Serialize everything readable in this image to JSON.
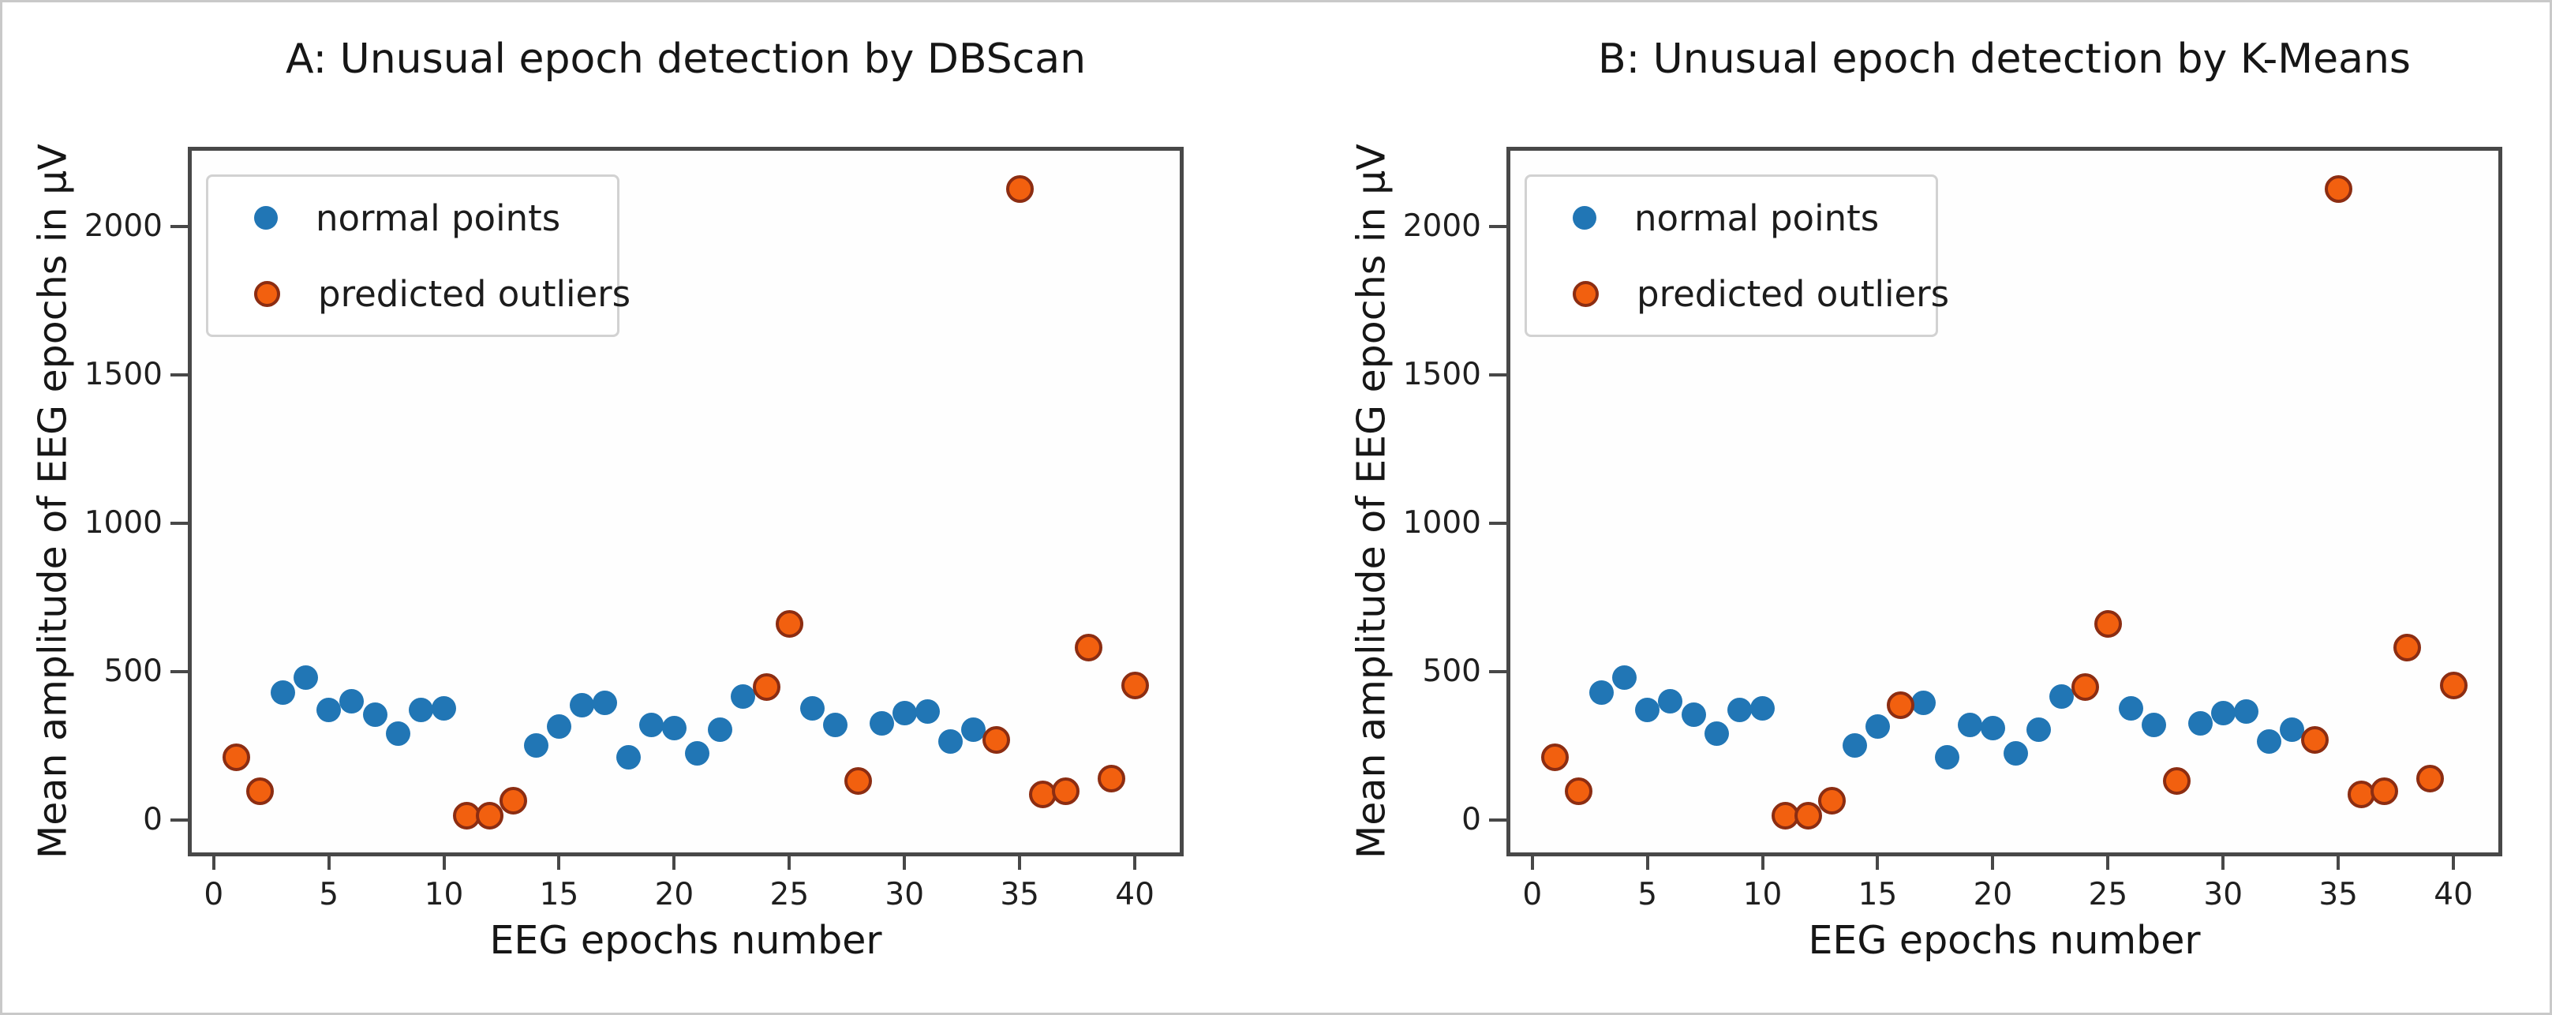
{
  "figure": {
    "background_color": "#ffffff",
    "accent_colors": {
      "normal_point": "#2176b5",
      "outlier_fill": "#f2600f",
      "outlier_edge": "#8c2d12",
      "axis_spine": "#484848"
    }
  },
  "legend": {
    "items": [
      {
        "label": "normal points",
        "type": "normal",
        "color": "#2176b5"
      },
      {
        "label": "predicted outliers",
        "type": "outlier",
        "color": "#f2600f"
      }
    ],
    "position": "upper left"
  },
  "chart_data": [
    {
      "type": "scatter",
      "panel": "A",
      "title": "A: Unusual epoch detection by DBScan",
      "xlabel": "EEG epochs number",
      "ylabel": "Mean amplitude of EEG epochs in µV",
      "xlim": [
        -0.95,
        41.95
      ],
      "ylim": [
        -110,
        2255
      ],
      "xticks": [
        0,
        5,
        10,
        15,
        20,
        25,
        30,
        35,
        40
      ],
      "yticks": [
        0,
        500,
        1000,
        1500,
        2000
      ],
      "grid": false,
      "legend_position": "upper left",
      "series": [
        {
          "name": "normal points",
          "marker": "circle",
          "color": "#2176b5",
          "points": [
            [
              3,
              430
            ],
            [
              4,
              480
            ],
            [
              5,
              370
            ],
            [
              6,
              400
            ],
            [
              7,
              355
            ],
            [
              8,
              290
            ],
            [
              9,
              370
            ],
            [
              10,
              375
            ],
            [
              14,
              250
            ],
            [
              15,
              315
            ],
            [
              16,
              385
            ],
            [
              17,
              395
            ],
            [
              18,
              210
            ],
            [
              19,
              320
            ],
            [
              20,
              308
            ],
            [
              21,
              225
            ],
            [
              22,
              305
            ],
            [
              23,
              415
            ],
            [
              26,
              375
            ],
            [
              27,
              320
            ],
            [
              29,
              325
            ],
            [
              30,
              360
            ],
            [
              31,
              365
            ],
            [
              32,
              265
            ],
            [
              33,
              305
            ]
          ]
        },
        {
          "name": "predicted outliers",
          "marker": "circle-edged",
          "color": "#f2600f",
          "edge_color": "#8c2d12",
          "points": [
            [
              1,
              210
            ],
            [
              2,
              97
            ],
            [
              11,
              15
            ],
            [
              12,
              15
            ],
            [
              13,
              65
            ],
            [
              24,
              448
            ],
            [
              25,
              660
            ],
            [
              28,
              130
            ],
            [
              34,
              270
            ],
            [
              35,
              2125
            ],
            [
              36,
              85
            ],
            [
              37,
              97
            ],
            [
              38,
              580
            ],
            [
              39,
              140
            ],
            [
              40,
              453
            ]
          ]
        }
      ]
    },
    {
      "type": "scatter",
      "panel": "B",
      "title": "B: Unusual epoch detection by K-Means",
      "xlabel": "EEG epochs number",
      "ylabel": "Mean amplitude of EEG epochs in µV",
      "xlim": [
        -0.95,
        41.95
      ],
      "ylim": [
        -110,
        2255
      ],
      "xticks": [
        0,
        5,
        10,
        15,
        20,
        25,
        30,
        35,
        40
      ],
      "yticks": [
        0,
        500,
        1000,
        1500,
        2000
      ],
      "grid": false,
      "legend_position": "upper left",
      "series": [
        {
          "name": "normal points",
          "marker": "circle",
          "color": "#2176b5",
          "points": [
            [
              3,
              430
            ],
            [
              4,
              480
            ],
            [
              5,
              370
            ],
            [
              6,
              400
            ],
            [
              7,
              355
            ],
            [
              8,
              290
            ],
            [
              9,
              370
            ],
            [
              10,
              375
            ],
            [
              14,
              250
            ],
            [
              15,
              315
            ],
            [
              17,
              395
            ],
            [
              18,
              210
            ],
            [
              19,
              320
            ],
            [
              20,
              308
            ],
            [
              21,
              225
            ],
            [
              22,
              305
            ],
            [
              23,
              415
            ],
            [
              26,
              375
            ],
            [
              27,
              320
            ],
            [
              29,
              325
            ],
            [
              30,
              360
            ],
            [
              31,
              365
            ],
            [
              32,
              265
            ],
            [
              33,
              305
            ]
          ]
        },
        {
          "name": "predicted outliers",
          "marker": "circle-edged",
          "color": "#f2600f",
          "edge_color": "#8c2d12",
          "points": [
            [
              1,
              210
            ],
            [
              2,
              97
            ],
            [
              11,
              15
            ],
            [
              12,
              15
            ],
            [
              13,
              65
            ],
            [
              16,
              385
            ],
            [
              24,
              448
            ],
            [
              25,
              660
            ],
            [
              28,
              130
            ],
            [
              34,
              270
            ],
            [
              35,
              2125
            ],
            [
              36,
              85
            ],
            [
              37,
              97
            ],
            [
              38,
              580
            ],
            [
              39,
              140
            ],
            [
              40,
              453
            ]
          ]
        }
      ]
    }
  ]
}
